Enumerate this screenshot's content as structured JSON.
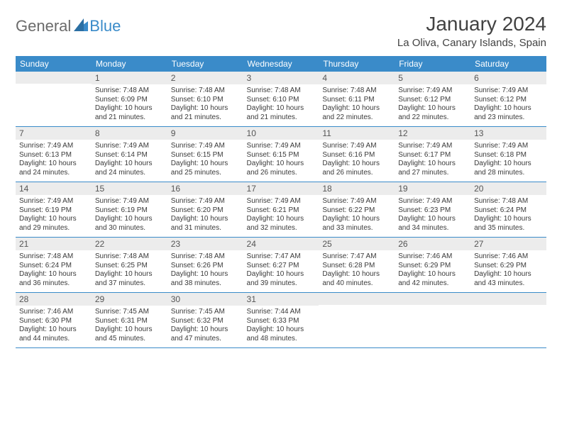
{
  "logo": {
    "general": "General",
    "blue": "Blue"
  },
  "title": "January 2024",
  "location": "La Oliva, Canary Islands, Spain",
  "colors": {
    "header_bg": "#3a8bc9",
    "header_fg": "#ffffff",
    "daynum_bg": "#ececec",
    "rule": "#3a8bc9",
    "logo_gray": "#6b6b6b",
    "logo_blue": "#3a8bc9"
  },
  "weekdays": [
    "Sunday",
    "Monday",
    "Tuesday",
    "Wednesday",
    "Thursday",
    "Friday",
    "Saturday"
  ],
  "weeks": [
    [
      null,
      {
        "n": "1",
        "sr": "7:48 AM",
        "ss": "6:09 PM",
        "dl": "10 hours and 21 minutes."
      },
      {
        "n": "2",
        "sr": "7:48 AM",
        "ss": "6:10 PM",
        "dl": "10 hours and 21 minutes."
      },
      {
        "n": "3",
        "sr": "7:48 AM",
        "ss": "6:10 PM",
        "dl": "10 hours and 21 minutes."
      },
      {
        "n": "4",
        "sr": "7:48 AM",
        "ss": "6:11 PM",
        "dl": "10 hours and 22 minutes."
      },
      {
        "n": "5",
        "sr": "7:49 AM",
        "ss": "6:12 PM",
        "dl": "10 hours and 22 minutes."
      },
      {
        "n": "6",
        "sr": "7:49 AM",
        "ss": "6:12 PM",
        "dl": "10 hours and 23 minutes."
      }
    ],
    [
      {
        "n": "7",
        "sr": "7:49 AM",
        "ss": "6:13 PM",
        "dl": "10 hours and 24 minutes."
      },
      {
        "n": "8",
        "sr": "7:49 AM",
        "ss": "6:14 PM",
        "dl": "10 hours and 24 minutes."
      },
      {
        "n": "9",
        "sr": "7:49 AM",
        "ss": "6:15 PM",
        "dl": "10 hours and 25 minutes."
      },
      {
        "n": "10",
        "sr": "7:49 AM",
        "ss": "6:15 PM",
        "dl": "10 hours and 26 minutes."
      },
      {
        "n": "11",
        "sr": "7:49 AM",
        "ss": "6:16 PM",
        "dl": "10 hours and 26 minutes."
      },
      {
        "n": "12",
        "sr": "7:49 AM",
        "ss": "6:17 PM",
        "dl": "10 hours and 27 minutes."
      },
      {
        "n": "13",
        "sr": "7:49 AM",
        "ss": "6:18 PM",
        "dl": "10 hours and 28 minutes."
      }
    ],
    [
      {
        "n": "14",
        "sr": "7:49 AM",
        "ss": "6:19 PM",
        "dl": "10 hours and 29 minutes."
      },
      {
        "n": "15",
        "sr": "7:49 AM",
        "ss": "6:19 PM",
        "dl": "10 hours and 30 minutes."
      },
      {
        "n": "16",
        "sr": "7:49 AM",
        "ss": "6:20 PM",
        "dl": "10 hours and 31 minutes."
      },
      {
        "n": "17",
        "sr": "7:49 AM",
        "ss": "6:21 PM",
        "dl": "10 hours and 32 minutes."
      },
      {
        "n": "18",
        "sr": "7:49 AM",
        "ss": "6:22 PM",
        "dl": "10 hours and 33 minutes."
      },
      {
        "n": "19",
        "sr": "7:49 AM",
        "ss": "6:23 PM",
        "dl": "10 hours and 34 minutes."
      },
      {
        "n": "20",
        "sr": "7:48 AM",
        "ss": "6:24 PM",
        "dl": "10 hours and 35 minutes."
      }
    ],
    [
      {
        "n": "21",
        "sr": "7:48 AM",
        "ss": "6:24 PM",
        "dl": "10 hours and 36 minutes."
      },
      {
        "n": "22",
        "sr": "7:48 AM",
        "ss": "6:25 PM",
        "dl": "10 hours and 37 minutes."
      },
      {
        "n": "23",
        "sr": "7:48 AM",
        "ss": "6:26 PM",
        "dl": "10 hours and 38 minutes."
      },
      {
        "n": "24",
        "sr": "7:47 AM",
        "ss": "6:27 PM",
        "dl": "10 hours and 39 minutes."
      },
      {
        "n": "25",
        "sr": "7:47 AM",
        "ss": "6:28 PM",
        "dl": "10 hours and 40 minutes."
      },
      {
        "n": "26",
        "sr": "7:46 AM",
        "ss": "6:29 PM",
        "dl": "10 hours and 42 minutes."
      },
      {
        "n": "27",
        "sr": "7:46 AM",
        "ss": "6:29 PM",
        "dl": "10 hours and 43 minutes."
      }
    ],
    [
      {
        "n": "28",
        "sr": "7:46 AM",
        "ss": "6:30 PM",
        "dl": "10 hours and 44 minutes."
      },
      {
        "n": "29",
        "sr": "7:45 AM",
        "ss": "6:31 PM",
        "dl": "10 hours and 45 minutes."
      },
      {
        "n": "30",
        "sr": "7:45 AM",
        "ss": "6:32 PM",
        "dl": "10 hours and 47 minutes."
      },
      {
        "n": "31",
        "sr": "7:44 AM",
        "ss": "6:33 PM",
        "dl": "10 hours and 48 minutes."
      },
      null,
      null,
      null
    ]
  ],
  "labels": {
    "sunrise": "Sunrise:",
    "sunset": "Sunset:",
    "daylight": "Daylight:"
  }
}
